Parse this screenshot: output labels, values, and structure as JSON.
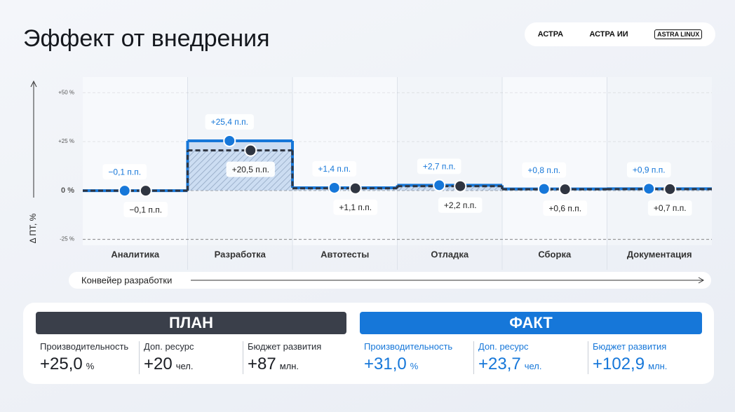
{
  "title": "Эффект от внедрения",
  "logos": [
    "АСТРА",
    "АСТРА ИИ",
    "ASTRA LINUX"
  ],
  "chart_data": {
    "type": "step",
    "y_label": "Δ ПТ, %",
    "x_label": "Конвейер разработки",
    "categories": [
      "Аналитика",
      "Разработка",
      "Автотесты",
      "Отладка",
      "Сборка",
      "Документация"
    ],
    "series": [
      {
        "color": "#1677d9",
        "dashed": false,
        "values": [
          -0.1,
          25.4,
          1.4,
          2.7,
          0.8,
          0.9
        ],
        "value_labels": [
          "−0,1 п.п.",
          "+25,4 п.п.",
          "+1,4 п.п.",
          "+2,7 п.п.",
          "+0,8 п.п.",
          "+0,9 п.п."
        ]
      },
      {
        "color": "#2f3541",
        "dashed": true,
        "values": [
          -0.1,
          20.5,
          1.1,
          2.2,
          0.6,
          0.7
        ],
        "value_labels": [
          "−0,1 п.п.",
          "+20,5 п.п.",
          "+1,1 п.п.",
          "+2,2 п.п.",
          "+0,6 п.п.",
          "+0,7 п.п."
        ]
      }
    ],
    "ylim": [
      -28,
      58
    ],
    "yticks": [
      {
        "value": 50,
        "label": "+50 %"
      },
      {
        "value": 25,
        "label": "+25 %"
      },
      {
        "value": 0,
        "label": "0 %"
      },
      {
        "value": -25,
        "label": "-25 %"
      }
    ],
    "grid": true
  },
  "summary": {
    "plan": {
      "title": "ПЛАН",
      "metrics": [
        {
          "label": "Производительность",
          "value": "+25,0",
          "unit": "%"
        },
        {
          "label": "Доп. ресурс",
          "value": "+20",
          "unit": "чел."
        },
        {
          "label": "Бюджет развития",
          "value": "+87",
          "unit": "млн."
        }
      ]
    },
    "fact": {
      "title": "ФАКТ",
      "metrics": [
        {
          "label": "Производительность",
          "value": "+31,0",
          "unit": "%"
        },
        {
          "label": "Доп. ресурс",
          "value": "+23,7",
          "unit": "чел."
        },
        {
          "label": "Бюджет развития",
          "value": "+102,9",
          "unit": "млн."
        }
      ]
    }
  }
}
